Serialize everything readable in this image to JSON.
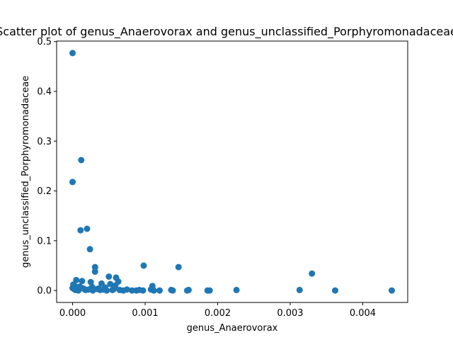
{
  "chart_data": {
    "type": "scatter",
    "title": "Scatter plot of genus_Anaerovorax and genus_unclassified_Porphyromonadaceae",
    "xlabel": "genus_Anaerovorax",
    "ylabel": "genus_unclassified_Porphyromonadaceae",
    "xlim": [
      -0.00022,
      0.00462
    ],
    "ylim": [
      -0.024,
      0.501
    ],
    "xticks": [
      0.0,
      0.001,
      0.002,
      0.003,
      0.004
    ],
    "xtick_labels": [
      "0.000",
      "0.001",
      "0.002",
      "0.003",
      "0.004"
    ],
    "yticks": [
      0.0,
      0.1,
      0.2,
      0.3,
      0.4,
      0.5
    ],
    "ytick_labels": [
      "0.0",
      "0.1",
      "0.2",
      "0.3",
      "0.4",
      "0.5"
    ],
    "grid": false,
    "marker_color": "#1f77b4",
    "x": [
      0.0,
      0.00012,
      0.0,
      0.00011,
      0.0002,
      0.00024,
      0.00031,
      0.00031,
      0.00098,
      0.00146,
      0.0033,
      0.0005,
      0.0006,
      0.00063,
      5e-05,
      0.00013,
      0.0001,
      0.00025,
      0.0004,
      0.00052,
      0.00059,
      0.0011,
      0.0,
      2e-05,
      4e-05,
      6e-05,
      8e-05,
      0.00015,
      0.00018,
      0.00022,
      0.00028,
      0.00034,
      0.00038,
      0.00043,
      0.00047,
      0.00055,
      0.00065,
      0.0007,
      0.00075,
      0.00082,
      0.00088,
      0.00092,
      0.00097,
      0.00108,
      0.00112,
      0.0012,
      0.00136,
      0.00138,
      0.00158,
      0.0016,
      0.00186,
      0.00189,
      0.00226,
      0.00313,
      0.00362,
      0.0044,
      1e-05,
      3e-05,
      7e-05,
      0.00016,
      0.00027,
      0.00036,
      0.00045,
      0.00057
    ],
    "y": [
      0.477,
      0.262,
      0.218,
      0.121,
      0.124,
      0.083,
      0.047,
      0.038,
      0.05,
      0.047,
      0.034,
      0.028,
      0.026,
      0.018,
      0.021,
      0.019,
      0.008,
      0.017,
      0.014,
      0.013,
      0.01,
      0.009,
      0.005,
      0.003,
      0.001,
      0.002,
      0.0,
      0.004,
      0.001,
      0.002,
      0.0,
      0.003,
      0.001,
      0.002,
      0.0,
      0.001,
      0.001,
      0.0,
      0.002,
      0.0,
      0.0,
      0.001,
      0.0,
      0.002,
      0.0,
      0.0,
      0.001,
      0.0,
      0.0,
      0.001,
      0.0,
      0.0,
      0.001,
      0.001,
      0.0,
      0.0,
      0.012,
      0.009,
      0.006,
      0.003,
      0.007,
      0.004,
      0.006,
      0.003
    ]
  }
}
